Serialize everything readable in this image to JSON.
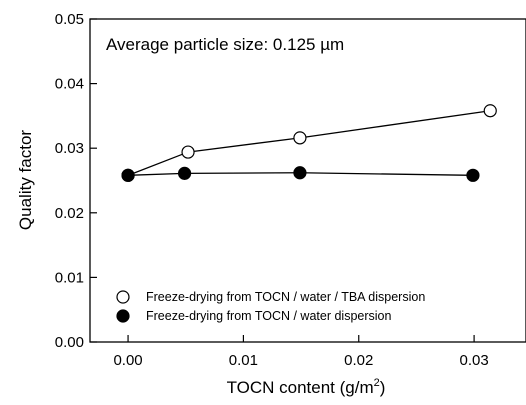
{
  "chart_data": {
    "type": "line",
    "annotation": "Average particle size: 0.125 µm",
    "xlabel": "TOCN content (g/m",
    "xlabel_sup": "2",
    "xlabel_end": ")",
    "ylabel": "Quality factor",
    "xlim": [
      -0.0033,
      0.0345
    ],
    "ylim": [
      0,
      0.05
    ],
    "xticks": [
      0.0,
      0.01,
      0.02,
      0.03
    ],
    "xtick_labels": [
      "0.00",
      "0.01",
      "0.02",
      "0.03"
    ],
    "yticks": [
      0.0,
      0.01,
      0.02,
      0.03,
      0.04,
      0.05
    ],
    "ytick_labels": [
      "0.00",
      "0.01",
      "0.02",
      "0.03",
      "0.04",
      "0.05"
    ],
    "grid": false,
    "legend_position": "bottom-left",
    "series": [
      {
        "name": "Freeze-drying from TOCN / water / TBA dispersion",
        "marker": "open-circle",
        "color": "#000000",
        "x": [
          0.0,
          0.0052,
          0.0149,
          0.0314
        ],
        "y": [
          0.0258,
          0.0294,
          0.0316,
          0.0358
        ]
      },
      {
        "name": "Freeze-drying from TOCN / water dispersion",
        "marker": "filled-circle",
        "color": "#000000",
        "x": [
          0.0,
          0.0049,
          0.0149,
          0.0299
        ],
        "y": [
          0.0258,
          0.0261,
          0.0262,
          0.0258
        ]
      }
    ]
  }
}
